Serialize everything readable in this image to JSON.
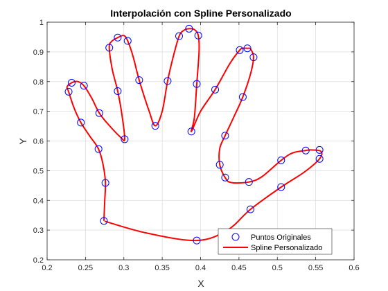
{
  "chart_data": {
    "type": "scatter",
    "title": "Interpolación con Spline Personalizado",
    "xlabel": "X",
    "ylabel": "Y",
    "xlim": [
      0.2,
      0.6
    ],
    "ylim": [
      0.2,
      1.0
    ],
    "xticks": [
      0.2,
      0.25,
      0.3,
      0.35,
      0.4,
      0.45,
      0.5,
      0.55,
      0.6
    ],
    "yticks": [
      0.2,
      0.3,
      0.4,
      0.5,
      0.6,
      0.7,
      0.8,
      0.9,
      1.0
    ],
    "xtick_labels": [
      "0.2",
      "0.25",
      "0.3",
      "0.35",
      "0.4",
      "0.45",
      "0.5",
      "0.55",
      "0.6"
    ],
    "ytick_labels": [
      "0.2",
      "0.3",
      "0.4",
      "0.5",
      "0.6",
      "0.7",
      "0.8",
      "0.9",
      "1"
    ],
    "grid": true,
    "legend": "bottom-right",
    "series": [
      {
        "name": "Puntos Originales",
        "kind": "markers",
        "color": "#0000ff",
        "points": [
          [
            0.395,
            0.265
          ],
          [
            0.465,
            0.37
          ],
          [
            0.505,
            0.445
          ],
          [
            0.555,
            0.54
          ],
          [
            0.555,
            0.57
          ],
          [
            0.537,
            0.568
          ],
          [
            0.505,
            0.535
          ],
          [
            0.463,
            0.462
          ],
          [
            0.432,
            0.477
          ],
          [
            0.425,
            0.52
          ],
          [
            0.432,
            0.618
          ],
          [
            0.455,
            0.748
          ],
          [
            0.469,
            0.882
          ],
          [
            0.461,
            0.912
          ],
          [
            0.451,
            0.906
          ],
          [
            0.419,
            0.773
          ],
          [
            0.395,
            0.792
          ],
          [
            0.388,
            0.632
          ],
          [
            0.397,
            0.955
          ],
          [
            0.385,
            0.978
          ],
          [
            0.372,
            0.953
          ],
          [
            0.357,
            0.802
          ],
          [
            0.341,
            0.651
          ],
          [
            0.32,
            0.805
          ],
          [
            0.305,
            0.937
          ],
          [
            0.292,
            0.948
          ],
          [
            0.281,
            0.914
          ],
          [
            0.292,
            0.768
          ],
          [
            0.301,
            0.606
          ],
          [
            0.268,
            0.694
          ],
          [
            0.248,
            0.786
          ],
          [
            0.232,
            0.796
          ],
          [
            0.228,
            0.766
          ],
          [
            0.244,
            0.662
          ],
          [
            0.267,
            0.573
          ],
          [
            0.276,
            0.459
          ],
          [
            0.274,
            0.331
          ]
        ]
      },
      {
        "name": "Spline Personalizado",
        "kind": "line",
        "color": "#ff0000",
        "points": [
          [
            0.275,
            0.33
          ],
          [
            0.33,
            0.29
          ],
          [
            0.395,
            0.265
          ],
          [
            0.435,
            0.3
          ],
          [
            0.465,
            0.37
          ],
          [
            0.505,
            0.445
          ],
          [
            0.535,
            0.495
          ],
          [
            0.555,
            0.54
          ],
          [
            0.557,
            0.565
          ],
          [
            0.545,
            0.57
          ],
          [
            0.537,
            0.568
          ],
          [
            0.52,
            0.56
          ],
          [
            0.505,
            0.535
          ],
          [
            0.48,
            0.48
          ],
          [
            0.463,
            0.462
          ],
          [
            0.44,
            0.46
          ],
          [
            0.432,
            0.477
          ],
          [
            0.425,
            0.52
          ],
          [
            0.425,
            0.575
          ],
          [
            0.432,
            0.618
          ],
          [
            0.445,
            0.69
          ],
          [
            0.455,
            0.748
          ],
          [
            0.465,
            0.825
          ],
          [
            0.469,
            0.882
          ],
          [
            0.465,
            0.91
          ],
          [
            0.461,
            0.912
          ],
          [
            0.455,
            0.912
          ],
          [
            0.451,
            0.906
          ],
          [
            0.438,
            0.86
          ],
          [
            0.419,
            0.773
          ],
          [
            0.4,
            0.7
          ],
          [
            0.388,
            0.632
          ],
          [
            0.392,
            0.68
          ],
          [
            0.395,
            0.792
          ],
          [
            0.398,
            0.9
          ],
          [
            0.397,
            0.955
          ],
          [
            0.392,
            0.975
          ],
          [
            0.385,
            0.978
          ],
          [
            0.378,
            0.972
          ],
          [
            0.372,
            0.953
          ],
          [
            0.364,
            0.88
          ],
          [
            0.357,
            0.802
          ],
          [
            0.35,
            0.7
          ],
          [
            0.341,
            0.651
          ],
          [
            0.333,
            0.7
          ],
          [
            0.32,
            0.805
          ],
          [
            0.312,
            0.885
          ],
          [
            0.305,
            0.937
          ],
          [
            0.3,
            0.955
          ],
          [
            0.292,
            0.948
          ],
          [
            0.284,
            0.935
          ],
          [
            0.281,
            0.914
          ],
          [
            0.285,
            0.84
          ],
          [
            0.292,
            0.768
          ],
          [
            0.298,
            0.68
          ],
          [
            0.301,
            0.606
          ],
          [
            0.296,
            0.612
          ],
          [
            0.28,
            0.655
          ],
          [
            0.268,
            0.694
          ],
          [
            0.258,
            0.745
          ],
          [
            0.248,
            0.786
          ],
          [
            0.24,
            0.8
          ],
          [
            0.232,
            0.796
          ],
          [
            0.226,
            0.782
          ],
          [
            0.228,
            0.766
          ],
          [
            0.235,
            0.712
          ],
          [
            0.244,
            0.662
          ],
          [
            0.256,
            0.615
          ],
          [
            0.267,
            0.573
          ],
          [
            0.273,
            0.52
          ],
          [
            0.276,
            0.459
          ],
          [
            0.275,
            0.395
          ],
          [
            0.274,
            0.331
          ]
        ]
      }
    ]
  }
}
